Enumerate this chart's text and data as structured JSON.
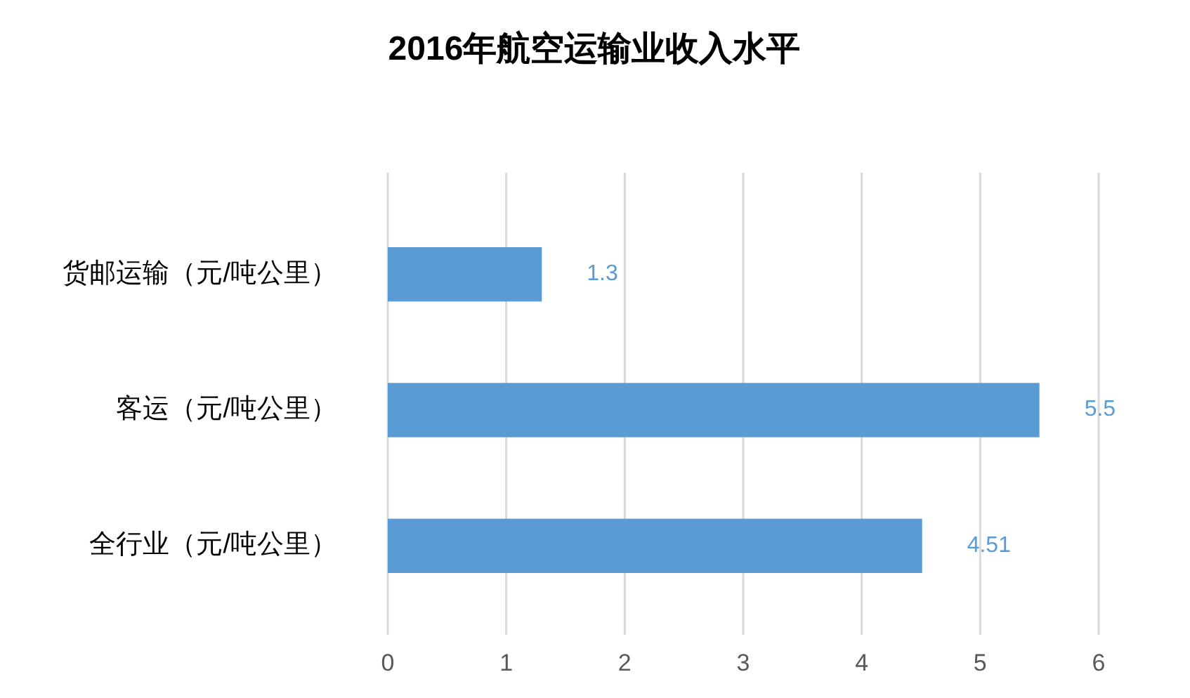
{
  "chart_data": {
    "type": "bar",
    "orientation": "horizontal",
    "title": "2016年航空运输业收入水平",
    "categories": [
      "货邮运输（元/吨公里）",
      "客运（元/吨公里）",
      "全行业（元/吨公里）"
    ],
    "values": [
      1.3,
      5.5,
      4.51
    ],
    "color": "#5b9bd5",
    "xlim": [
      0,
      6
    ],
    "xticks": [
      0,
      1,
      2,
      3,
      4,
      5,
      6
    ],
    "grid": "x",
    "data_labels": true
  }
}
